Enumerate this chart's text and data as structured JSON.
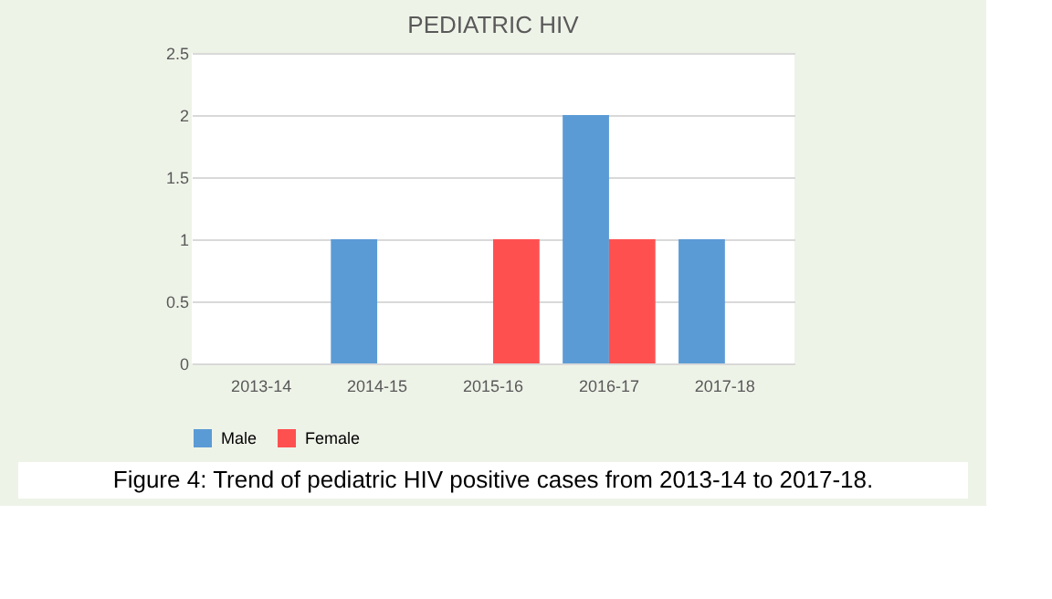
{
  "chart_data": {
    "type": "bar",
    "title": "PEDIATRIC HIV",
    "categories": [
      "2013-14",
      "2014-15",
      "2015-16",
      "2016-17",
      "2017-18"
    ],
    "series": [
      {
        "name": "Male",
        "color": "#5b9bd5",
        "values": [
          0,
          1,
          0,
          2,
          1
        ]
      },
      {
        "name": "Female",
        "color": "#ff5050",
        "values": [
          0,
          0,
          1,
          1,
          0
        ]
      }
    ],
    "ylim": [
      0,
      2.5
    ],
    "yticks": [
      0,
      0.5,
      1,
      1.5,
      2,
      2.5
    ],
    "grid": "y",
    "legend": "bottom",
    "annotations": [
      "Figure 4: Trend of pediatric HIV positive cases from 2013-14 to 2017-18."
    ]
  }
}
